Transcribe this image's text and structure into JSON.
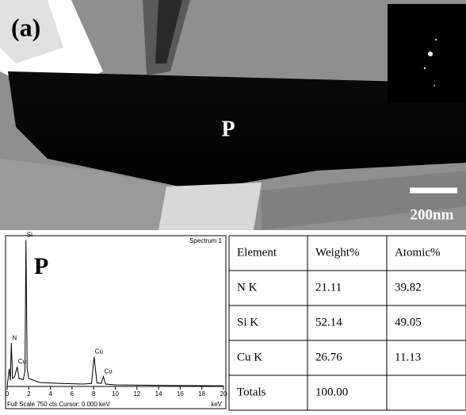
{
  "figure": {
    "panel_label": "(a)",
    "image_label": "P",
    "scale_bar": "200nm",
    "spectrum_label": "P"
  },
  "chart_data": {
    "type": "line",
    "title": "Spectrum 1",
    "x_label": "keV",
    "footer": "Full Scale 750 cts  Cursor: 0.000 keV",
    "x": [
      0,
      0.2,
      0.3,
      0.39,
      0.5,
      0.7,
      0.93,
      1.1,
      1.5,
      1.65,
      1.74,
      1.85,
      2.0,
      3,
      5,
      7,
      7.8,
      8.04,
      8.3,
      8.7,
      8.9,
      9.1,
      10,
      15,
      20
    ],
    "values": [
      0,
      90,
      30,
      220,
      40,
      50,
      100,
      40,
      35,
      80,
      740,
      90,
      40,
      20,
      15,
      12,
      15,
      150,
      18,
      15,
      50,
      12,
      8,
      5,
      3
    ],
    "color": "#000000",
    "xlim": [
      0,
      20
    ],
    "xticks": [
      0,
      2,
      4,
      6,
      8,
      10,
      12,
      14,
      16,
      18,
      20
    ],
    "ylim": [
      0,
      750
    ],
    "annotations": [
      {
        "text": "N",
        "x": 0.39,
        "y": 220
      },
      {
        "text": "Cu",
        "x": 0.93,
        "y": 100
      },
      {
        "text": "Si",
        "x": 1.74,
        "y": 740
      },
      {
        "text": "Cu",
        "x": 8.04,
        "y": 150
      },
      {
        "text": "Cu",
        "x": 8.9,
        "y": 50
      }
    ]
  },
  "table": {
    "header": [
      "Element",
      "Weight%",
      "Atomic%"
    ],
    "rows": [
      [
        "N K",
        "21.11",
        "39.82"
      ],
      [
        "Si K",
        "52.14",
        "49.05"
      ],
      [
        "Cu K",
        "26.76",
        "11.13"
      ],
      [
        "Totals",
        "100.00"
      ]
    ]
  }
}
